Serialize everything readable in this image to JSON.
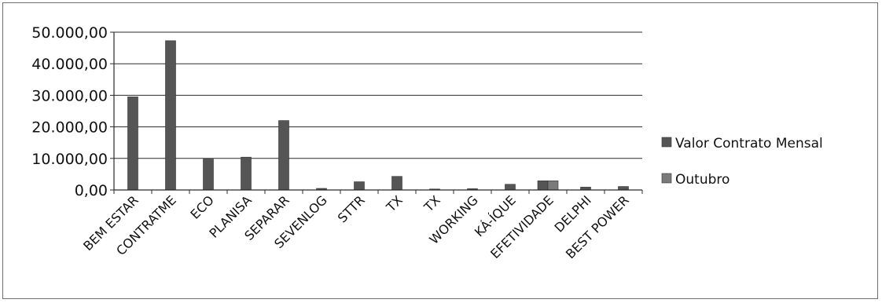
{
  "chart_data": {
    "type": "bar",
    "title": "",
    "xlabel": "",
    "ylabel": "",
    "ylim": [
      0,
      50000
    ],
    "yticks": [
      0,
      10000,
      20000,
      30000,
      40000,
      50000
    ],
    "ytick_labels": [
      "0,00",
      "10.000,00",
      "20.000,00",
      "30.000,00",
      "40.000,00",
      "50.000,00"
    ],
    "grid": true,
    "legend_position": "right",
    "categories": [
      "BEM ESTAR",
      "CONTRATME",
      "ECO",
      "PLANISA",
      "SEPARAR",
      "SEVENLOG",
      "STTR",
      "TX",
      "TX",
      "WORKING",
      "KÁ-ÍQUE",
      "EFETIVIDADE",
      "DELPHI",
      "BEST POWER"
    ],
    "series": [
      {
        "name": "Valor Contrato Mensal",
        "color": "#555555",
        "values": [
          29500,
          47300,
          9800,
          10400,
          22000,
          500,
          2600,
          4300,
          300,
          400,
          1800,
          2900,
          900,
          1100
        ]
      },
      {
        "name": "Outubro",
        "color": "#7a7a7a",
        "values": [
          0,
          0,
          0,
          0,
          0,
          0,
          0,
          0,
          0,
          0,
          0,
          2900,
          0,
          0
        ]
      }
    ]
  }
}
